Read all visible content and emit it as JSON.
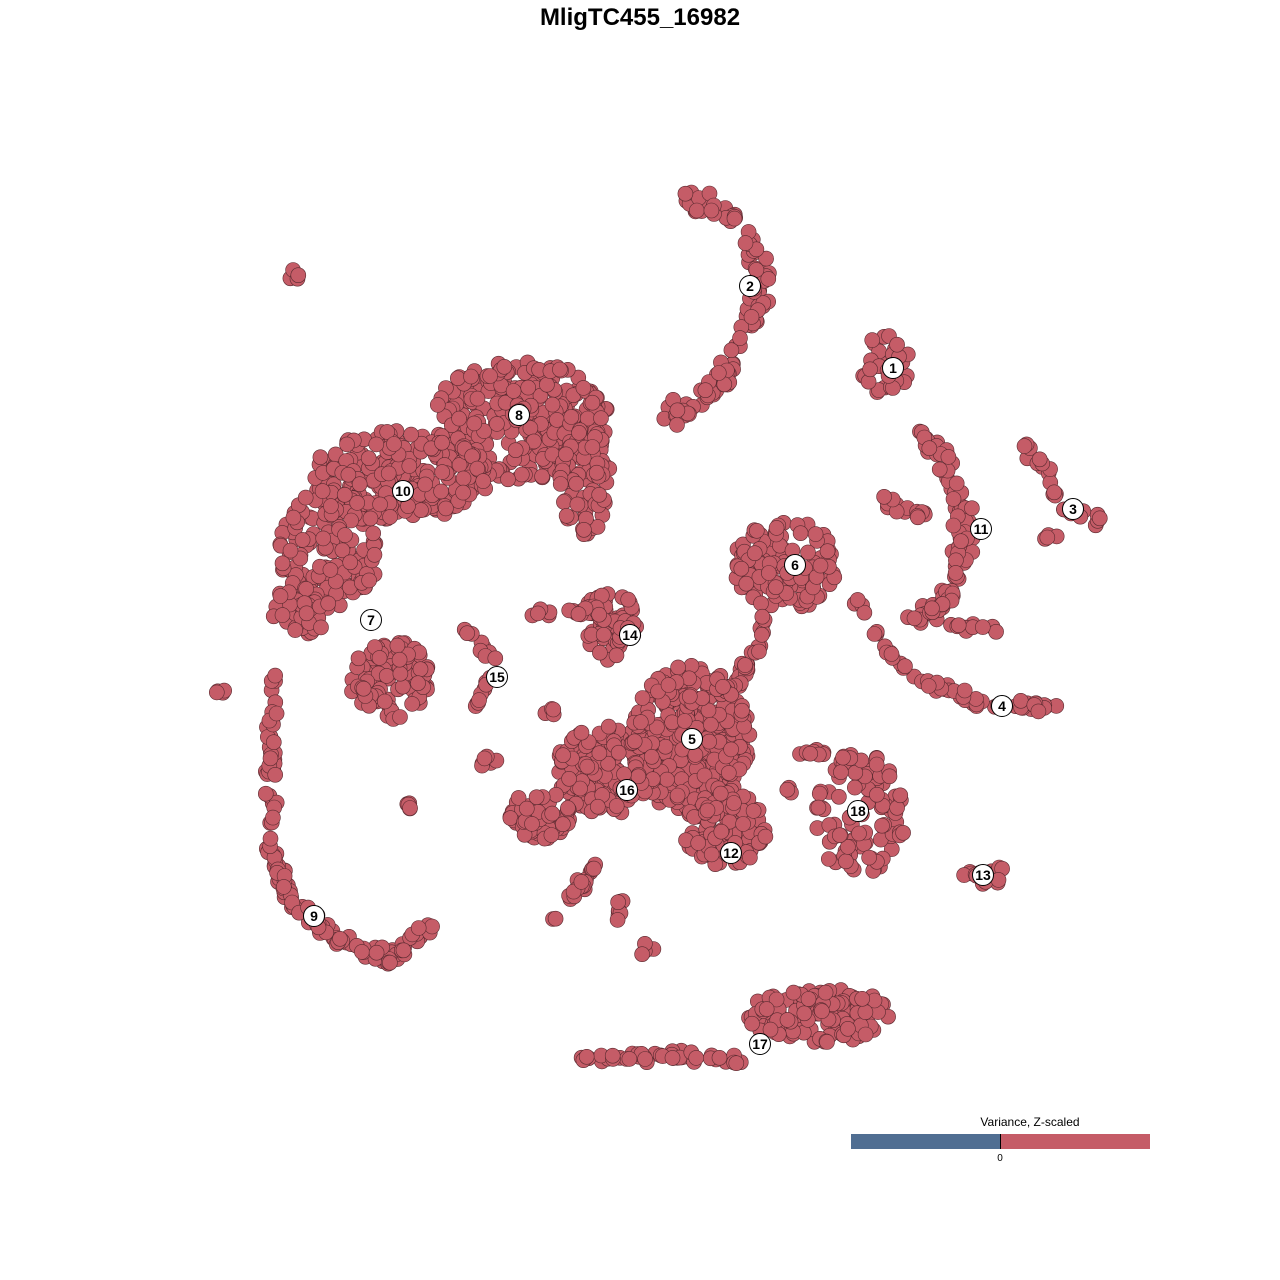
{
  "chart_data": {
    "type": "scatter",
    "title": "MligTC455_16982",
    "xlabel": "",
    "ylabel": "",
    "grid": false,
    "axes_visible": false,
    "point_color": "#c55c67",
    "point_edge_color": "#5a2a30",
    "legend": {
      "title": "Variance, Z-scaled",
      "placement": "bottom-right",
      "negative_color": "#506e92",
      "positive_color": "#c55c67",
      "tick_label": "0"
    },
    "clusters": [
      {
        "label": "1",
        "x": 25.3,
        "y": 27.2
      },
      {
        "label": "2",
        "x": 11.0,
        "y": 35.4
      },
      {
        "label": "3",
        "x": 43.3,
        "y": 13.1
      },
      {
        "label": "4",
        "x": 36.2,
        "y": -6.6
      },
      {
        "label": "5",
        "x": 5.2,
        "y": -9.9
      },
      {
        "label": "6",
        "x": 15.5,
        "y": 7.5
      },
      {
        "label": "7",
        "x": -26.9,
        "y": 2.0
      },
      {
        "label": "8",
        "x": -12.1,
        "y": 22.5
      },
      {
        "label": "9",
        "x": -32.6,
        "y": -27.6
      },
      {
        "label": "10",
        "x": -23.7,
        "y": 14.9
      },
      {
        "label": "11",
        "x": 34.1,
        "y": 11.1
      },
      {
        "label": "12",
        "x": 9.1,
        "y": -21.3
      },
      {
        "label": "13",
        "x": 34.3,
        "y": -23.5
      },
      {
        "label": "14",
        "x": -1.0,
        "y": 0.5
      },
      {
        "label": "15",
        "x": -14.3,
        "y": -3.7
      },
      {
        "label": "16",
        "x": -1.3,
        "y": -15.0
      },
      {
        "label": "17",
        "x": 12.0,
        "y": -40.4
      },
      {
        "label": "18",
        "x": 21.8,
        "y": -17.1
      }
    ]
  }
}
